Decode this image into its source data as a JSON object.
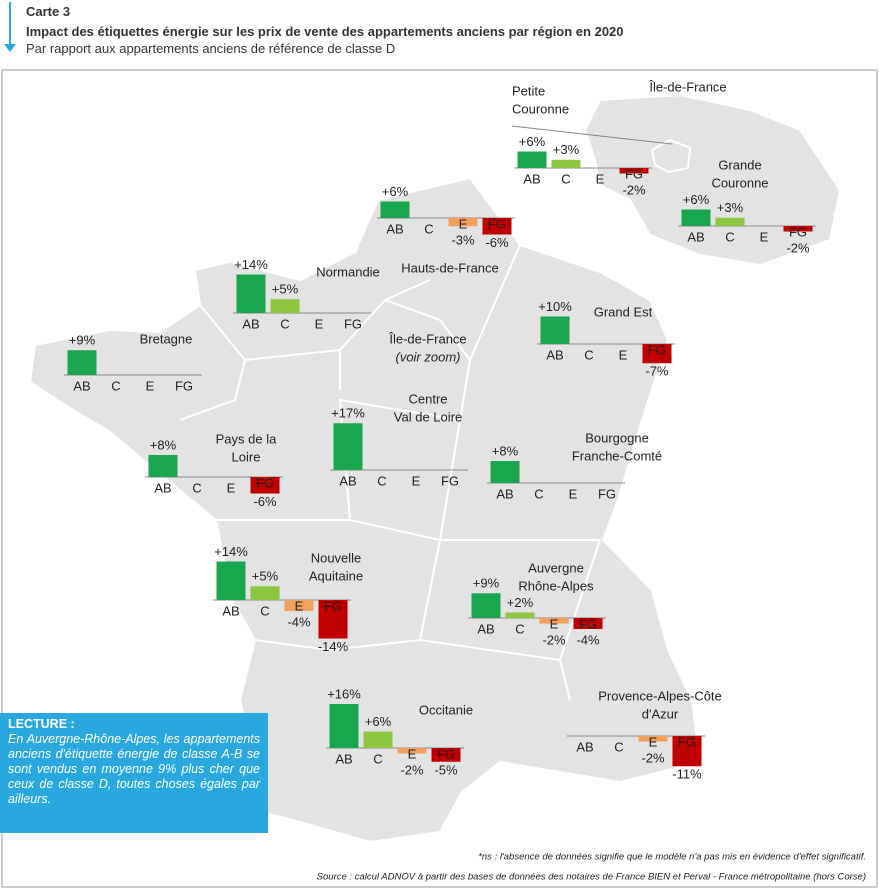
{
  "header": {
    "label": "Carte 3",
    "title": "Impact des étiquettes énergie sur les prix de vente des appartements anciens par région en 2020",
    "subtitle": "Par rapport aux appartements anciens de référence de classe D"
  },
  "categories": [
    "AB",
    "C",
    "E",
    "FG"
  ],
  "colors": [
    "#1aa64f",
    "#8dc63f",
    "#f3a05c",
    "#c00000"
  ],
  "zoom": {
    "title": "Île-de-France",
    "idf_label": [
      "Île-de-France",
      "(voir zoom)"
    ]
  },
  "regions": [
    {
      "name": [
        "Petite",
        "Couronne"
      ],
      "values": [
        6,
        3,
        null,
        -2
      ],
      "value_labels": [
        "+6%",
        "+3%",
        null,
        "-2%"
      ]
    },
    {
      "name": [
        "Grande",
        "Couronne"
      ],
      "values": [
        6,
        3,
        null,
        -2
      ],
      "value_labels": [
        "+6%",
        "+3%",
        null,
        "-2%"
      ]
    },
    {
      "name": [
        "Hauts-de-France"
      ],
      "values": [
        6,
        null,
        -3,
        -6
      ],
      "value_labels": [
        "+6%",
        null,
        "-3%",
        "-6%"
      ]
    },
    {
      "name": [
        "Normandie"
      ],
      "values": [
        14,
        5,
        null,
        null
      ],
      "value_labels": [
        "+14%",
        "+5%",
        null,
        null
      ]
    },
    {
      "name": [
        "Grand Est"
      ],
      "values": [
        10,
        null,
        null,
        -7
      ],
      "value_labels": [
        "+10%",
        null,
        null,
        "-7%"
      ]
    },
    {
      "name": [
        "Bretagne"
      ],
      "values": [
        9,
        null,
        null,
        null
      ],
      "value_labels": [
        "+9%",
        null,
        null,
        null
      ]
    },
    {
      "name": [
        "Pays de la",
        "Loire"
      ],
      "values": [
        8,
        null,
        null,
        -6
      ],
      "value_labels": [
        "+8%",
        null,
        null,
        "-6%"
      ]
    },
    {
      "name": [
        "Centre",
        "Val de Loire"
      ],
      "values": [
        17,
        null,
        null,
        null
      ],
      "value_labels": [
        "+17%",
        null,
        null,
        null
      ]
    },
    {
      "name": [
        "Bourgogne",
        "Franche-Comté"
      ],
      "values": [
        8,
        null,
        null,
        null
      ],
      "value_labels": [
        "+8%",
        null,
        null,
        null
      ]
    },
    {
      "name": [
        "Nouvelle",
        "Aquitaine"
      ],
      "values": [
        14,
        5,
        -4,
        -14
      ],
      "value_labels": [
        "+14%",
        "+5%",
        "-4%",
        "-14%"
      ]
    },
    {
      "name": [
        "Auvergne",
        "Rhône-Alpes"
      ],
      "values": [
        9,
        2,
        -2,
        -4
      ],
      "value_labels": [
        "+9%",
        "+2%",
        "-2%",
        "-4%"
      ]
    },
    {
      "name": [
        "Occitanie"
      ],
      "values": [
        16,
        6,
        -2,
        -5
      ],
      "value_labels": [
        "+16%",
        "+6%",
        "-2%",
        "-5%"
      ]
    },
    {
      "name": [
        "Provence-Alpes-Côte",
        "d'Azur"
      ],
      "values": [
        null,
        null,
        -2,
        -11
      ],
      "value_labels": [
        null,
        null,
        "-2%",
        "-11%"
      ]
    }
  ],
  "lecture": {
    "title": "LECTURE :",
    "text": "En Auvergne-Rhône-Alpes, les appartements anciens d'étiquette énergie de classe A-B se sont vendus en moyenne 9% plus cher que ceux de classe D, toutes choses égales par ailleurs."
  },
  "footnote": "*ns : l'absence de données signifie que le modèle n'a pas mis en évidence d'effet significatif.",
  "source": "Source : calcul ADNOV à partir des bases de données des notaires de France BIEN et Perval - France métropolitaine (hors Corse)"
}
